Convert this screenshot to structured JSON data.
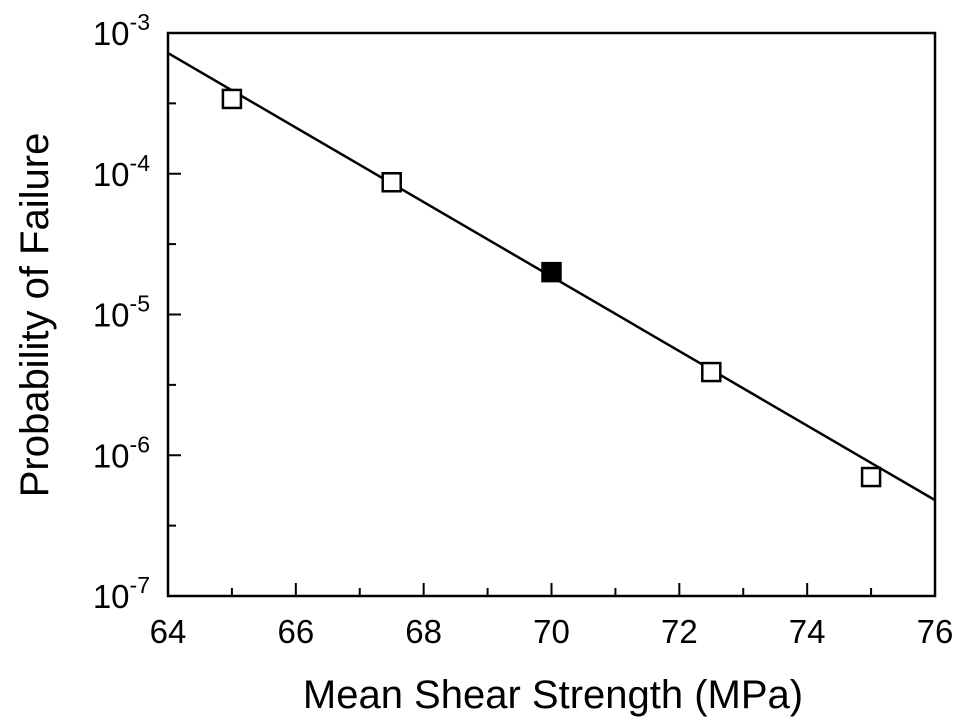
{
  "chart_data": {
    "type": "scatter",
    "title": "",
    "xlabel": "Mean Shear Strength (MPa)",
    "ylabel": "Probability of Failure",
    "x_scale": "linear",
    "y_scale": "log",
    "xlim": [
      64,
      76
    ],
    "ylim": [
      1e-07,
      0.001
    ],
    "grid": false,
    "legend": "none",
    "x_ticks": [
      {
        "value": 64,
        "label": "64"
      },
      {
        "value": 66,
        "label": "66"
      },
      {
        "value": 68,
        "label": "68"
      },
      {
        "value": 70,
        "label": "70"
      },
      {
        "value": 72,
        "label": "72"
      },
      {
        "value": 74,
        "label": "74"
      },
      {
        "value": 76,
        "label": "76"
      }
    ],
    "y_ticks": [
      {
        "value": 1e-07,
        "base": "10",
        "exp": "-7"
      },
      {
        "value": 1e-06,
        "base": "10",
        "exp": "-6"
      },
      {
        "value": 1e-05,
        "base": "10",
        "exp": "-5"
      },
      {
        "value": 0.0001,
        "base": "10",
        "exp": "-4"
      },
      {
        "value": 0.001,
        "base": "10",
        "exp": "-3"
      }
    ],
    "series": [
      {
        "marker": "open-square",
        "color": "#000000",
        "points": [
          {
            "x": 65.0,
            "y": 0.00034
          },
          {
            "x": 67.5,
            "y": 8.7e-05
          },
          {
            "x": 72.5,
            "y": 3.9e-06
          },
          {
            "x": 75.0,
            "y": 7e-07
          }
        ]
      },
      {
        "marker": "filled-square",
        "color": "#000000",
        "points": [
          {
            "x": 70.0,
            "y": 2e-05
          }
        ]
      }
    ],
    "fit_line": {
      "color": "#000000",
      "points": [
        {
          "x": 64.0,
          "y": 0.00072
        },
        {
          "x": 76.0,
          "y": 4.8e-07
        }
      ]
    }
  }
}
